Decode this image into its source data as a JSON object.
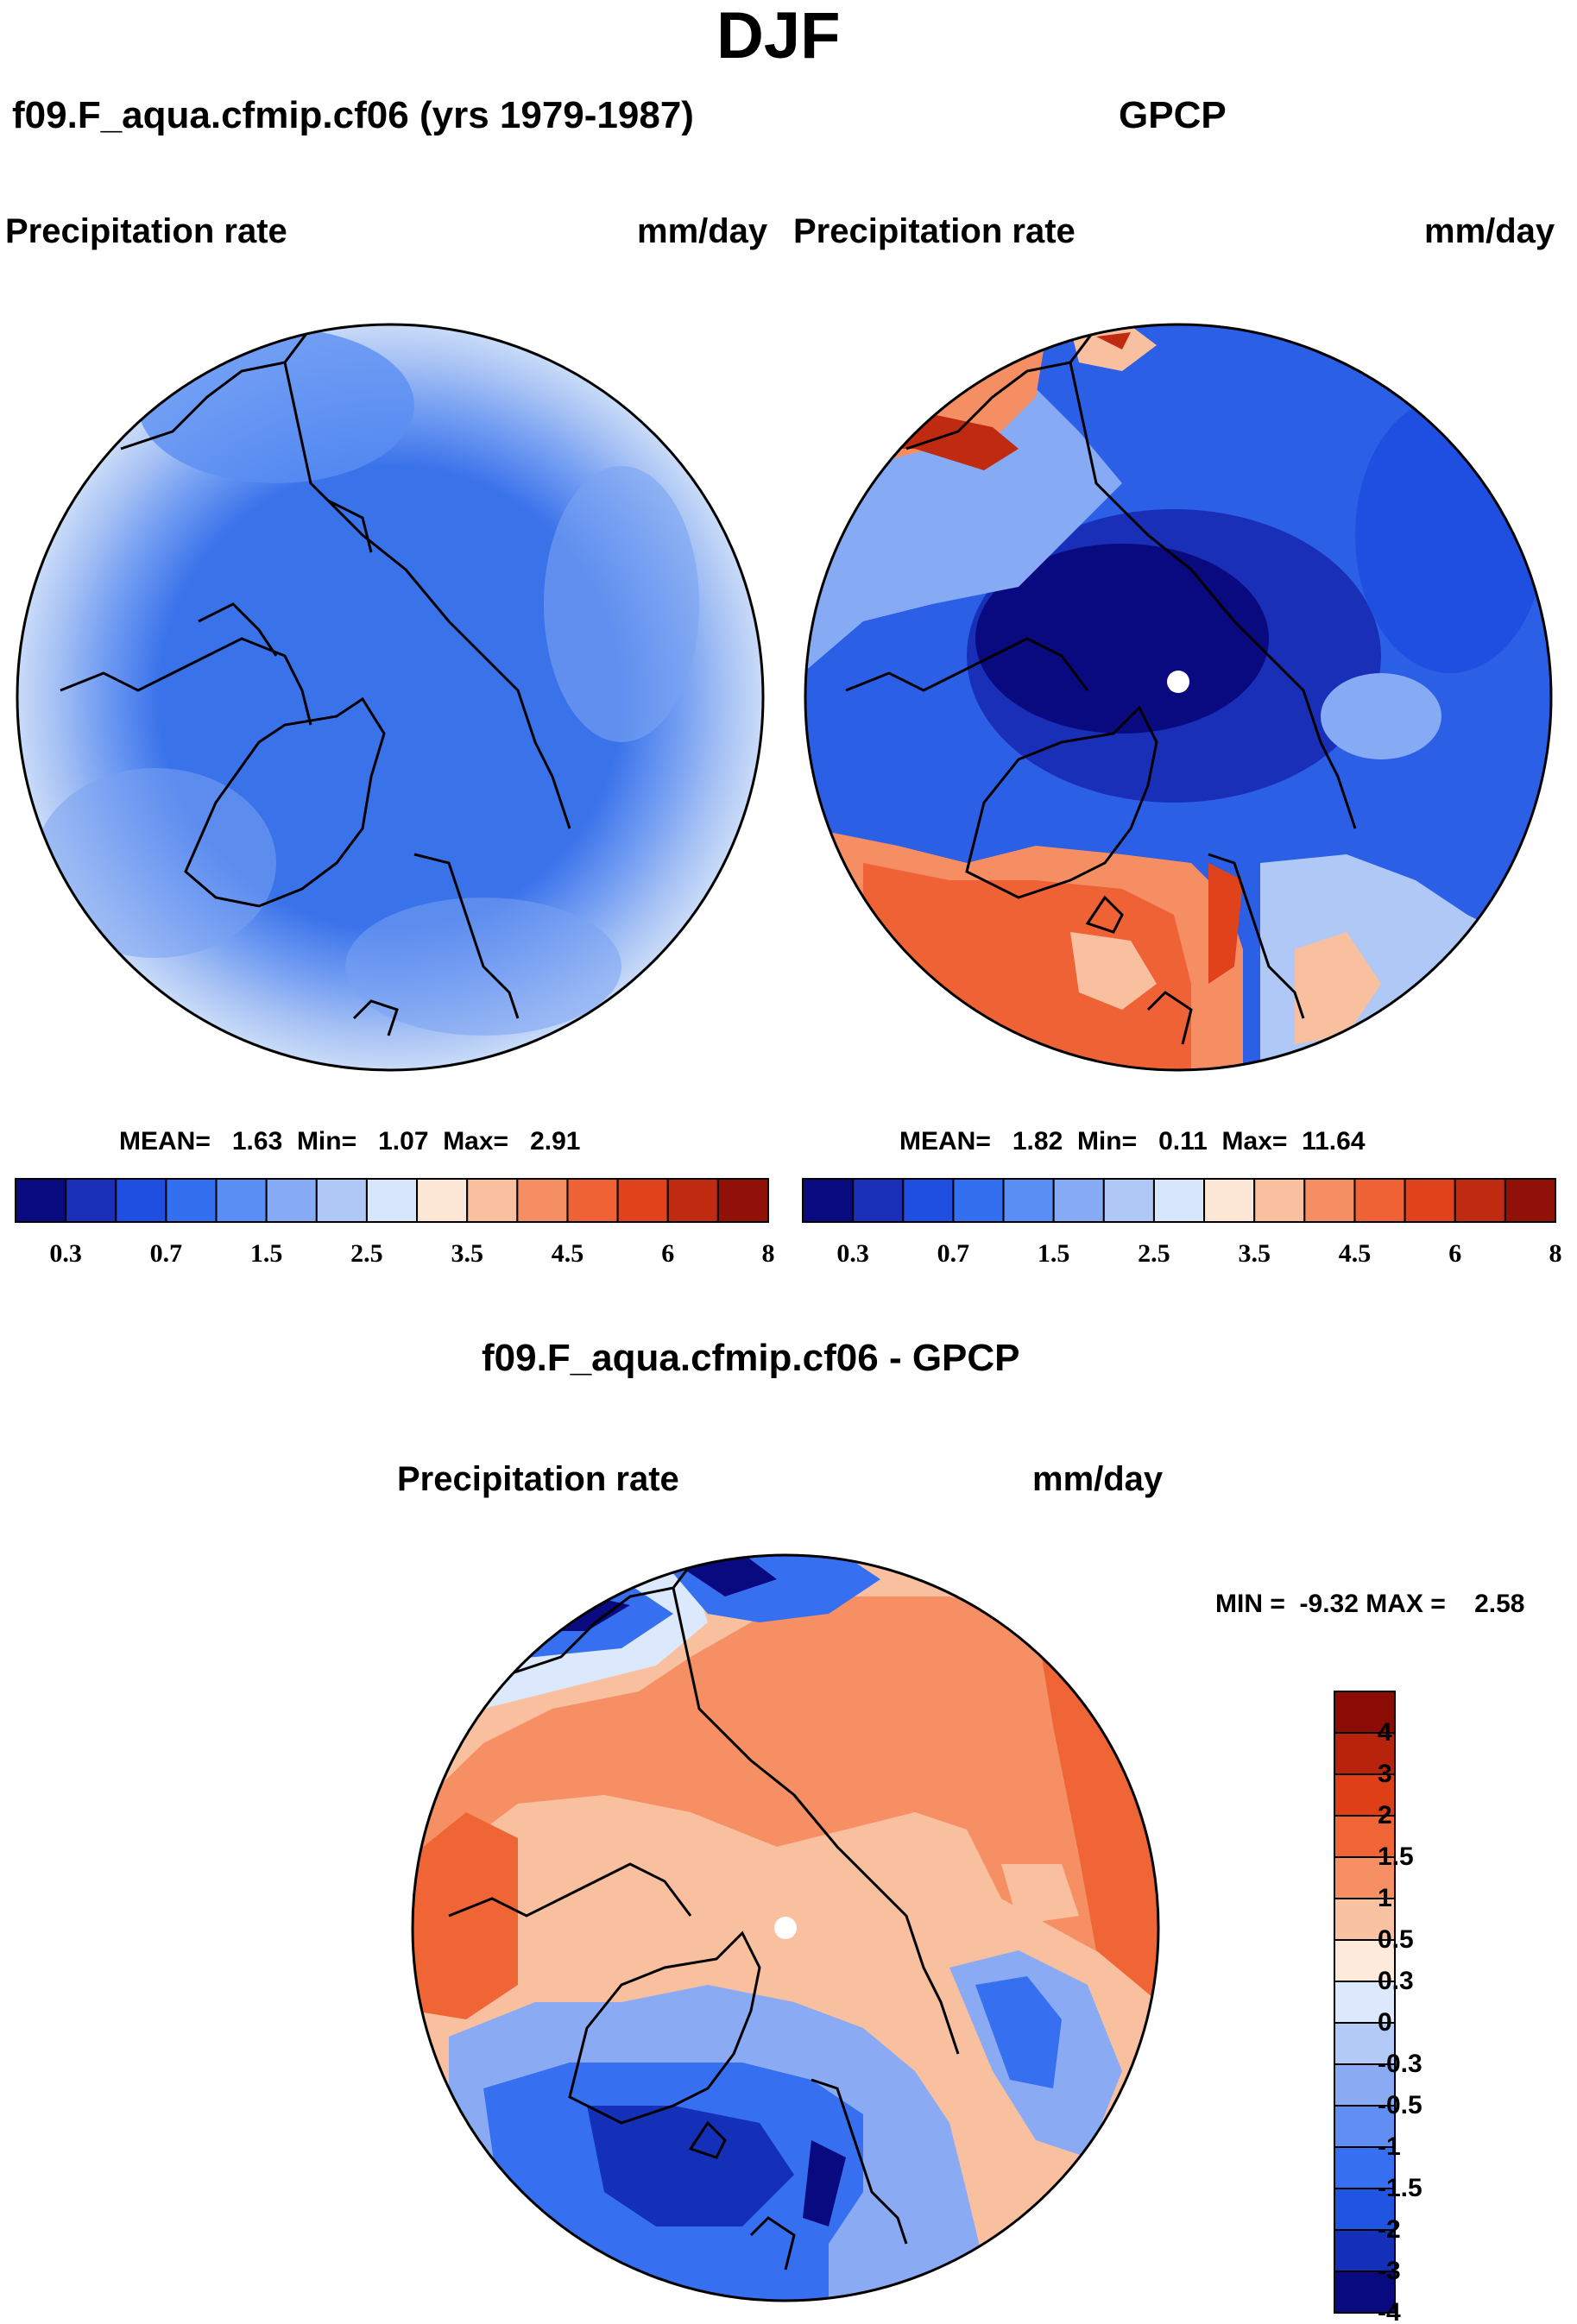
{
  "season": "DJF",
  "colors": {
    "abs": [
      "#0a0a80",
      "#1a2fb8",
      "#1f4fe0",
      "#3370f0",
      "#5a8ef5",
      "#86aaf3",
      "#b0c8f5",
      "#d8e6fb",
      "#fde7d6",
      "#f9c0a0",
      "#f58f63",
      "#ee6236",
      "#e0421b",
      "#c02a10",
      "#8f1108"
    ],
    "diff": [
      "#0a0a80",
      "#1530b8",
      "#1f55e0",
      "#3670f0",
      "#608ef3",
      "#8aabf4",
      "#b4caf6",
      "#dce8fb",
      "#fdeadb",
      "#f9c2a2",
      "#f69064",
      "#ef6536",
      "#df3f17",
      "#b8240b",
      "#8a0c05"
    ]
  },
  "panels": {
    "model": {
      "title": "f09.F_aqua.cfmip.cf06 (yrs 1979-1987)",
      "left_label": "Precipitation rate",
      "right_label": "mm/day",
      "stats": {
        "mean_label": "MEAN=",
        "mean": "1.63",
        "min_label": "Min=",
        "min": "1.07",
        "max_label": "Max=",
        "max": "2.91"
      },
      "colorbar": {
        "levels": [
          "0.3",
          "0.7",
          "1.5",
          "2.5",
          "3.5",
          "4.5",
          "6",
          "8"
        ]
      }
    },
    "obs": {
      "title": "GPCP",
      "left_label": "Precipitation rate",
      "right_label": "mm/day",
      "stats": {
        "mean_label": "MEAN=",
        "mean": "1.82",
        "min_label": "Min=",
        "min": "0.11",
        "max_label": "Max=",
        "max": "11.64"
      },
      "colorbar": {
        "levels": [
          "0.3",
          "0.7",
          "1.5",
          "2.5",
          "3.5",
          "4.5",
          "6",
          "8"
        ]
      }
    },
    "diff": {
      "title": "f09.F_aqua.cfmip.cf06 - GPCP",
      "left_label": "Precipitation rate",
      "right_label": "mm/day",
      "minmax": "MIN =  -9.32 MAX =    2.58",
      "colorbar": {
        "levels": [
          "4",
          "3",
          "2",
          "1.5",
          "1",
          "0.5",
          "0.3",
          "0",
          "-0.3",
          "-0.5",
          "-1",
          "-1.5",
          "-2",
          "-3",
          "-4"
        ]
      }
    }
  }
}
